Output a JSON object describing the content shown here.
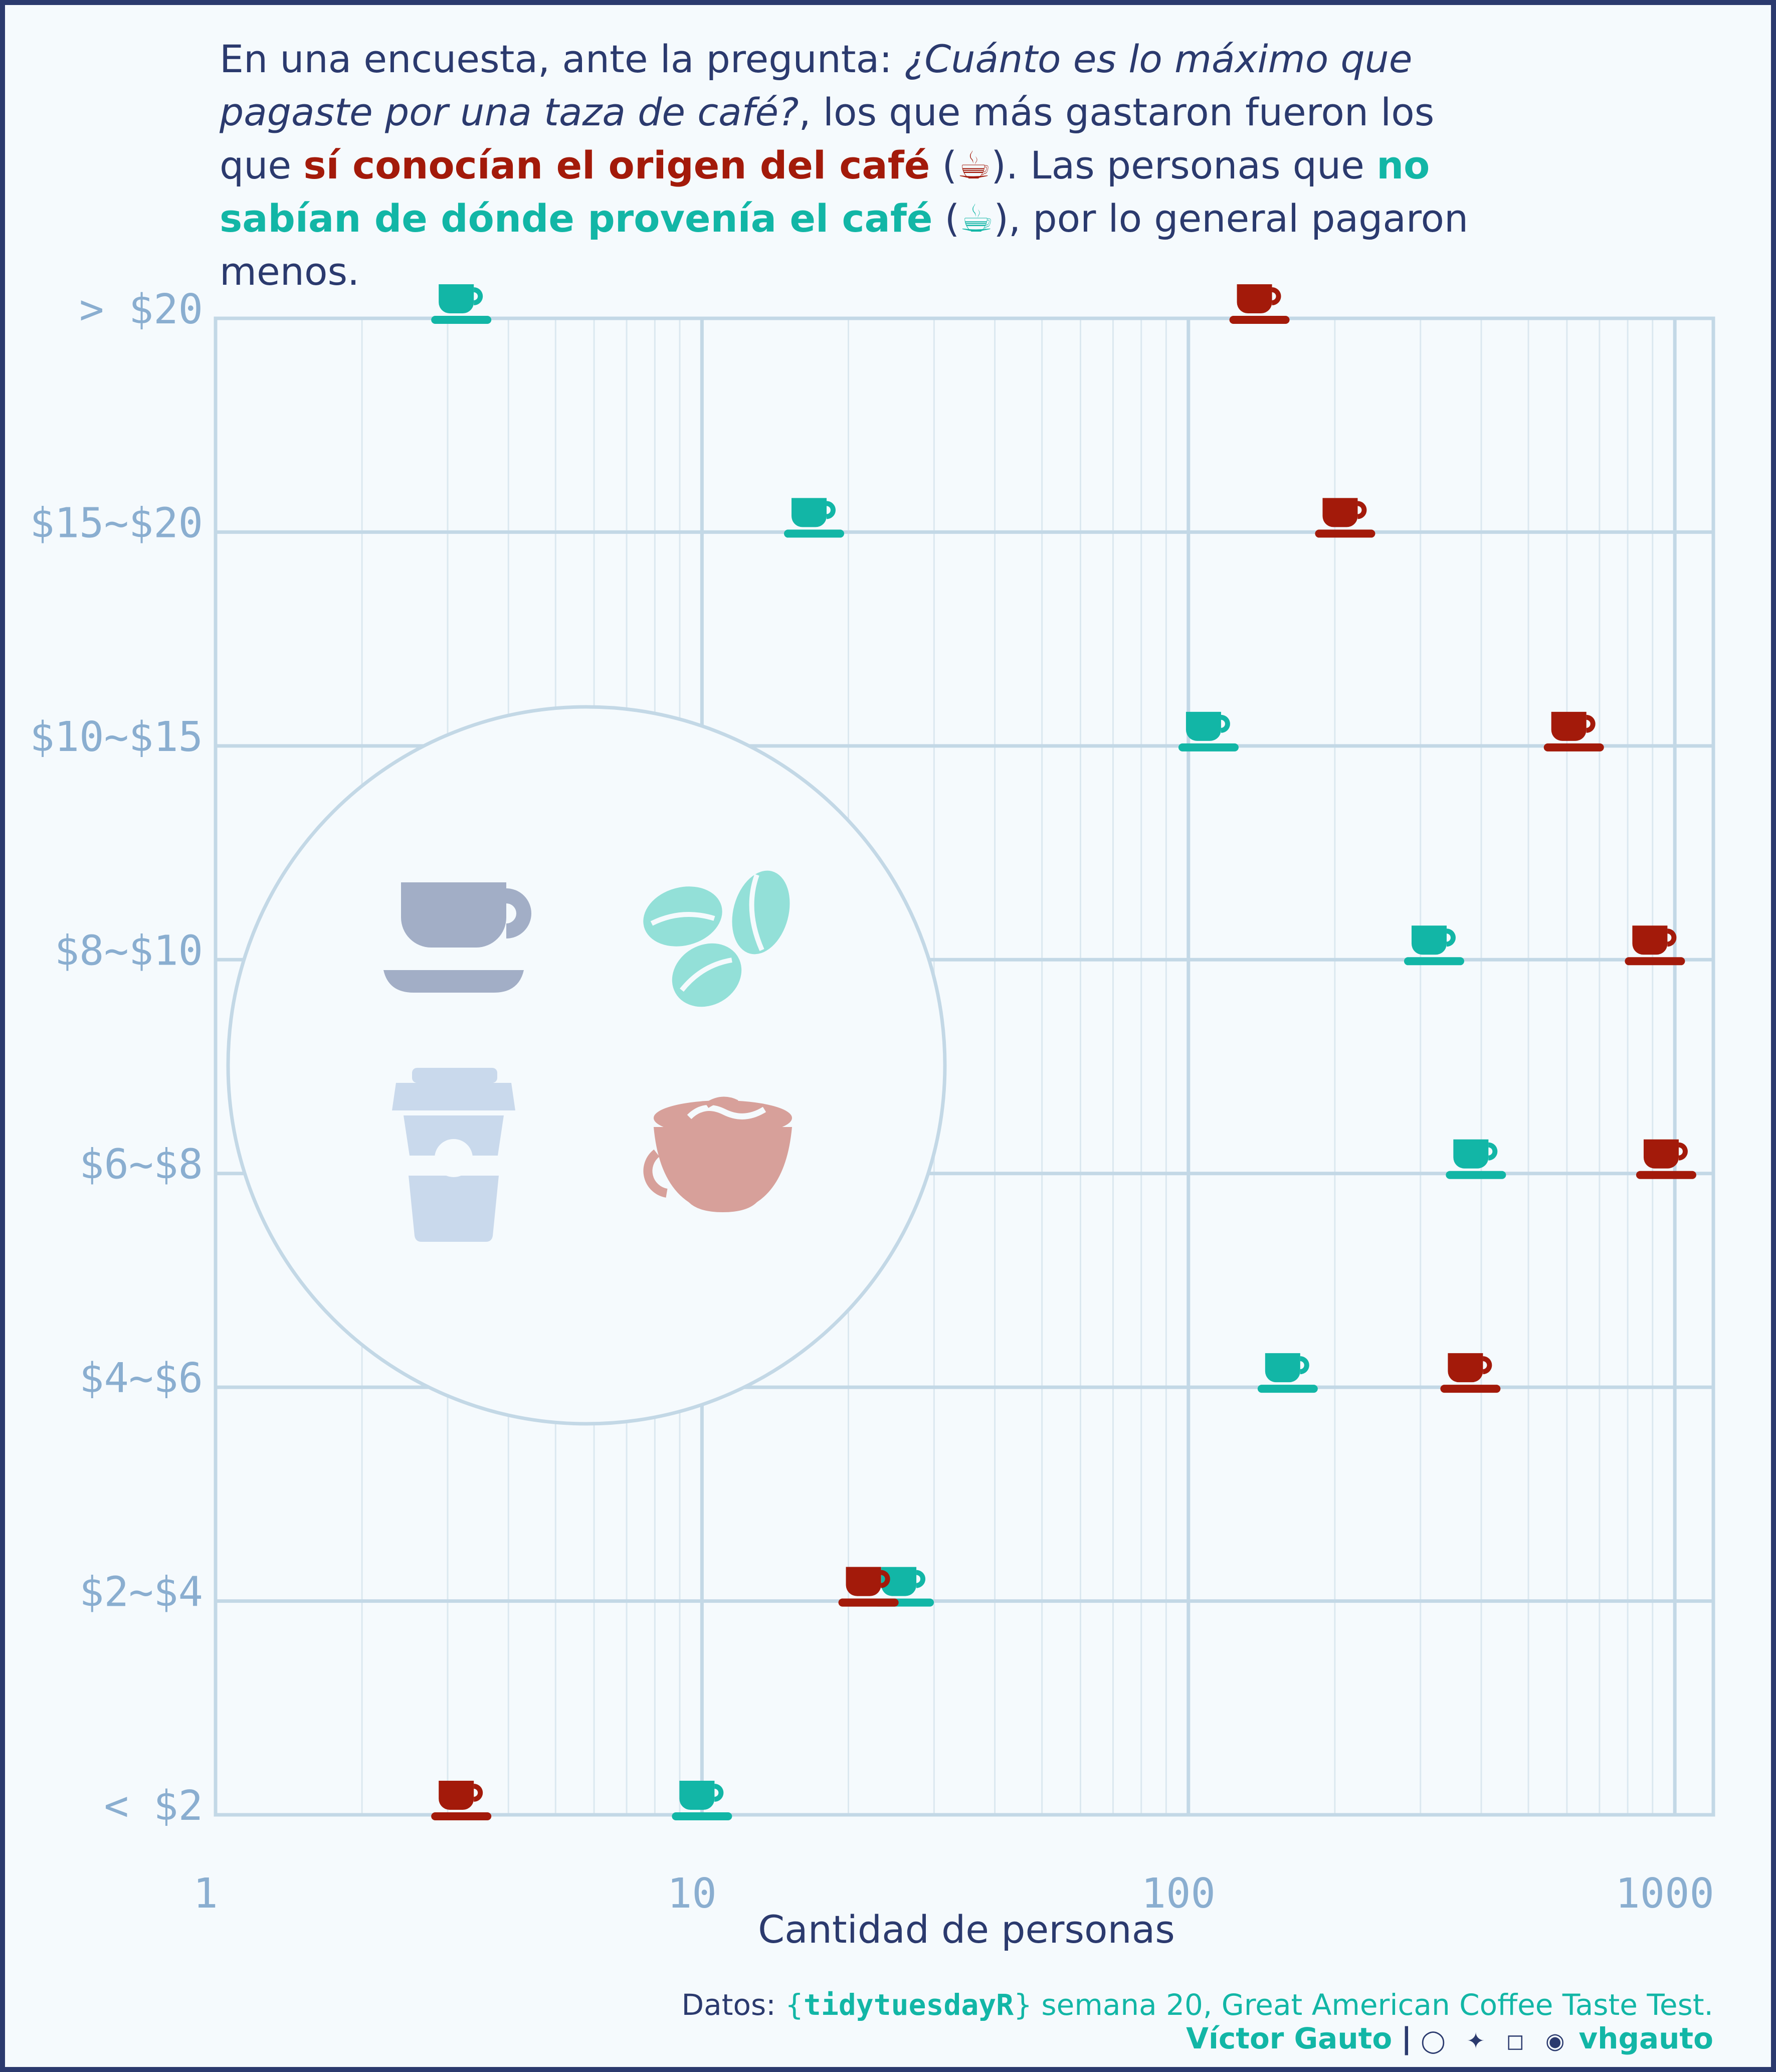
{
  "title": {
    "p1": "En una encuesta, ante la pregunta: ",
    "question": "¿Cuánto es lo máximo que pagaste por una taza de café?",
    "p2": ", los que más gastaron fueron los que ",
    "known": "sí conocían el origen del café",
    "p3": " (",
    "p4": "). Las personas que ",
    "unknown": "no sabían de dónde provenía el café",
    "p5": " (",
    "p6": "), por lo general pagaron menos.",
    "cup_icon": "☕"
  },
  "colors": {
    "known": "#a31a0a",
    "unknown": "#12b6a6",
    "grid_major": "#c3d8e6",
    "grid_minor": "#dbe8f0",
    "axis_text": "#8aaed0",
    "dark": "#2b3a6e"
  },
  "chart_data": {
    "type": "scatter",
    "x_scale": "log10",
    "xlim": [
      1,
      1200
    ],
    "xlabel": "Cantidad de personas",
    "x_ticks": [
      1,
      10,
      100,
      1000
    ],
    "x_tick_labels": [
      "1",
      "10",
      "100",
      "1000"
    ],
    "categories": [
      "< $2",
      "$2~$4",
      "$4~$6",
      "$6~$8",
      "$8~$10",
      "$10~$15",
      "$15~$20",
      "> $20"
    ],
    "marker": "coffee-cup",
    "series": [
      {
        "name": "sí conocían el origen del café",
        "color": "#a31a0a",
        "values": [
          3.2,
          22,
          380,
          960,
          910,
          620,
          210,
          140
        ]
      },
      {
        "name": "no sabían de dónde provenía el café",
        "color": "#12b6a6",
        "values": [
          10,
          26,
          160,
          390,
          320,
          110,
          17,
          3.2
        ]
      }
    ]
  },
  "badge_icons": [
    "coffee-cup-icon",
    "coffee-beans-icon",
    "takeaway-cup-icon",
    "latte-art-icon"
  ],
  "caption": {
    "prefix": "Datos: ",
    "open_brace": "{",
    "package": "tidytuesdayR",
    "close_brace": "}",
    "rest": " semana 20, Great American Coffee Taste Test."
  },
  "author": {
    "name": "Víctor Gauto",
    "separator": "|",
    "social_icons": "◯ ✦ ◻ ◉",
    "handle": "vhgauto"
  }
}
